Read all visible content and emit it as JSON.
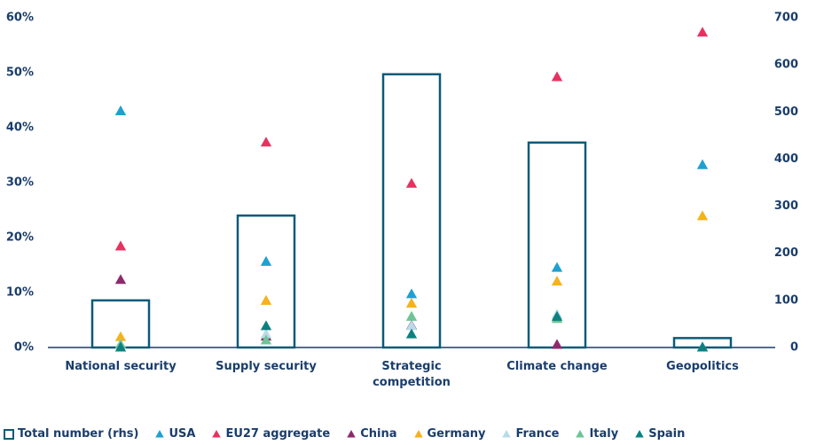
{
  "chart_data": {
    "type": "bar",
    "categories": [
      "National security",
      "Supply security",
      "Strategic competition",
      "Climate change",
      "Geopolitics"
    ],
    "ylim": [
      0,
      60
    ],
    "yticks": [
      {
        "value": 0,
        "label": "0%"
      },
      {
        "value": 10,
        "label": "10%"
      },
      {
        "value": 20,
        "label": "20%"
      },
      {
        "value": 30,
        "label": "30%"
      },
      {
        "value": 40,
        "label": "40%"
      },
      {
        "value": 50,
        "label": "50%"
      },
      {
        "value": 60,
        "label": "60%"
      }
    ],
    "y2lim": [
      0,
      700
    ],
    "y2ticks": [
      0,
      100,
      200,
      300,
      400,
      500,
      600,
      700
    ],
    "series": [
      {
        "name": "Total number (rhs)",
        "color": "#0b5a78",
        "axis": "y2",
        "values": [
          100,
          280,
          580,
          435,
          20
        ]
      },
      {
        "name": "USA",
        "color": "#1fa0d0",
        "values": [
          43,
          15.6,
          9.7,
          14.5,
          33.2
        ]
      },
      {
        "name": "EU27 aggregate",
        "color": "#e8315f",
        "values": [
          18.4,
          37.3,
          29.8,
          49.2,
          57.3
        ]
      },
      {
        "name": "China",
        "color": "#8e2a6b",
        "values": [
          12.3,
          2,
          4,
          0.5,
          0
        ]
      },
      {
        "name": "Germany",
        "color": "#f5b21b",
        "values": [
          1.9,
          8.5,
          8,
          12,
          23.9
        ]
      },
      {
        "name": "France",
        "color": "#b9dbe8",
        "values": [
          0.6,
          2.4,
          3.9,
          6,
          0
        ]
      },
      {
        "name": "Italy",
        "color": "#6dc496",
        "values": [
          0.5,
          1.3,
          5.6,
          5.2,
          0
        ]
      },
      {
        "name": "Spain",
        "color": "#0d8080",
        "values": [
          0,
          3.9,
          2.4,
          5.6,
          0
        ]
      }
    ]
  }
}
